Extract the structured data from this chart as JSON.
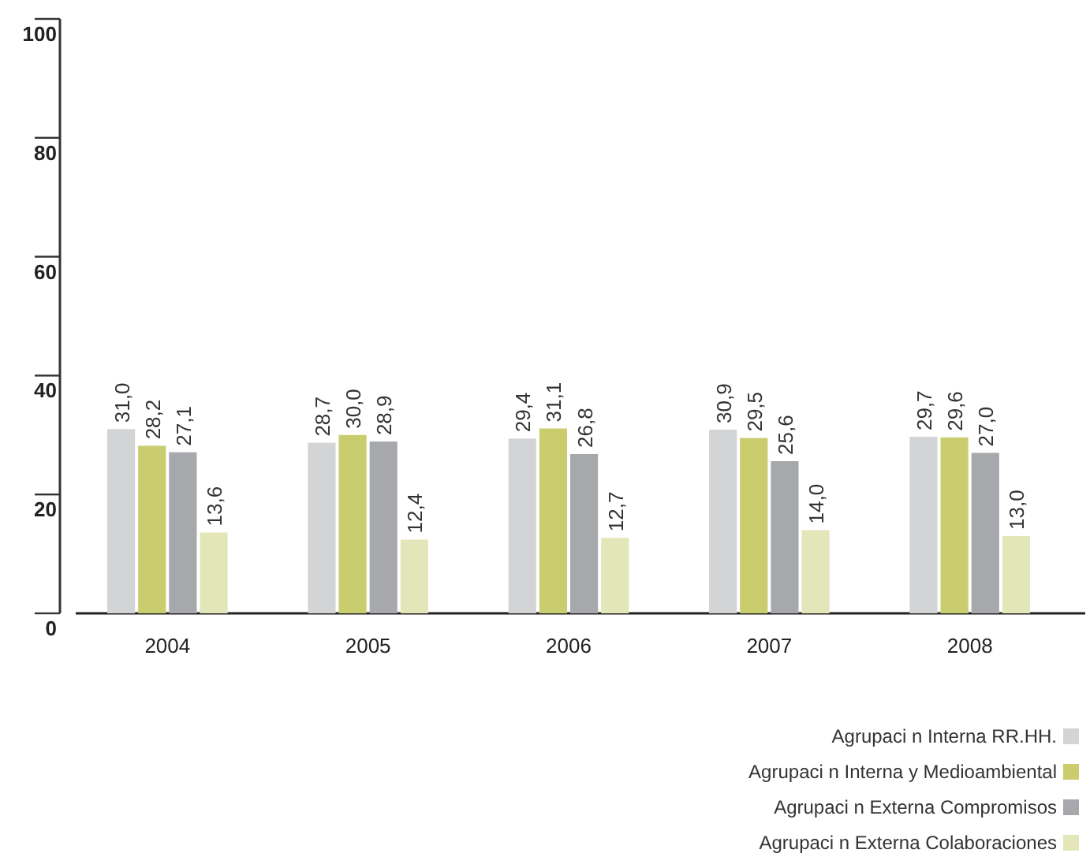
{
  "chart_data": {
    "type": "bar",
    "categories": [
      "2004",
      "2005",
      "2006",
      "2007",
      "2008"
    ],
    "series": [
      {
        "name": "Agrupaci n Interna RR.HH.",
        "color": "#d3d4d6",
        "values": [
          31.0,
          28.7,
          29.4,
          30.9,
          29.7
        ],
        "value_labels": [
          "31,0",
          "28,7",
          "29,4",
          "30,9",
          "29,7"
        ]
      },
      {
        "name": "Agrupaci n Interna y Medioambiental",
        "color": "#c9cd6d",
        "values": [
          28.2,
          30.0,
          31.1,
          29.5,
          29.6
        ],
        "value_labels": [
          "28,2",
          "30,0",
          "31,1",
          "29,5",
          "29,6"
        ]
      },
      {
        "name": "Agrupaci n Externa Compromisos",
        "color": "#a7a8ab",
        "values": [
          27.1,
          28.9,
          26.8,
          25.6,
          27.0
        ],
        "value_labels": [
          "27,1",
          "28,9",
          "26,8",
          "25,6",
          "27,0"
        ]
      },
      {
        "name": "Agrupaci n Externa Colaboraciones",
        "color": "#e3e6b8",
        "values": [
          13.6,
          12.4,
          12.7,
          14.0,
          13.0
        ],
        "value_labels": [
          "13,6",
          "12,4",
          "12,7",
          "14,0",
          "13,0"
        ]
      }
    ],
    "ylim": [
      0,
      100
    ],
    "yticks": [
      0,
      20,
      40,
      60,
      80,
      100
    ],
    "grid": false,
    "legend": "bottom right"
  }
}
